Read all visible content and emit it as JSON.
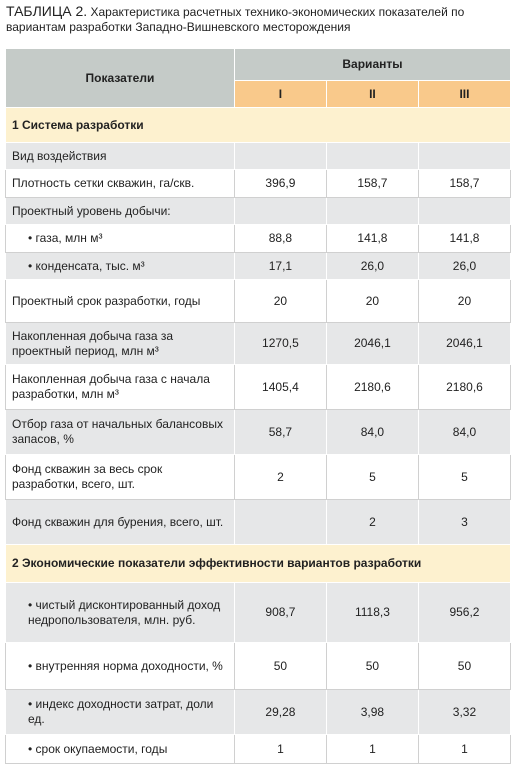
{
  "title": {
    "label": "ТАБЛИЦА 2.",
    "text": "Характеристика расчетных технико-экономических показателей по вариантам разработки Западно-Вишневского месторождения"
  },
  "table": {
    "header": {
      "indicator": "Показатели",
      "variants": "Варианты",
      "columns": [
        "I",
        "II",
        "III"
      ]
    },
    "rows": [
      {
        "section": "1 Система разработки"
      },
      {
        "label": "Вид воздействия",
        "values": [
          null,
          null,
          null
        ]
      },
      {
        "label": "Плотность сетки скважин, га/скв.",
        "values": [
          "396,9",
          "158,7",
          "158,7"
        ]
      },
      {
        "label": "Проектный уровень добычи:",
        "values": [
          null,
          null,
          null
        ]
      },
      {
        "label": "• газа, млн м³",
        "values": [
          "88,8",
          "141,8",
          "141,8"
        ]
      },
      {
        "label": "• конденсата, тыс. м³",
        "values": [
          "17,1",
          "26,0",
          "26,0"
        ]
      },
      {
        "label": "Проектный срок разработки, годы",
        "values": [
          "20",
          "20",
          "20"
        ]
      },
      {
        "label": "Накопленная добыча газа за проектный период, млн м³",
        "values": [
          "1270,5",
          "2046,1",
          "2046,1"
        ]
      },
      {
        "label": "Накопленная добыча газа с начала разработки, млн м³",
        "values": [
          "1405,4",
          "2180,6",
          "2180,6"
        ]
      },
      {
        "label": "Отбор газа от начальных балансовых запасов, %",
        "values": [
          "58,7",
          "84,0",
          "84,0"
        ]
      },
      {
        "label": "Фонд скважин за весь срок разработки, всего, шт.",
        "values": [
          "2",
          "5",
          "5"
        ]
      },
      {
        "label": "Фонд скважин для бурения, всего, шт.",
        "values": [
          null,
          "2",
          "3"
        ]
      },
      {
        "section": "2 Экономические показатели эффективности вариантов разработки"
      },
      {
        "label": "• чистый дисконтированный доход недропользователя, млн. руб.",
        "values": [
          "908,7",
          "1118,3",
          "956,2"
        ]
      },
      {
        "label": "• внутренняя норма доходности, %",
        "values": [
          "50",
          "50",
          "50"
        ]
      },
      {
        "label": "• индекс доходности затрат, доли ед.",
        "values": [
          "29,28",
          "3,98",
          "3,32"
        ]
      },
      {
        "label": "• срок окупаемости, годы",
        "values": [
          "1",
          "1",
          "1"
        ]
      }
    ]
  }
}
